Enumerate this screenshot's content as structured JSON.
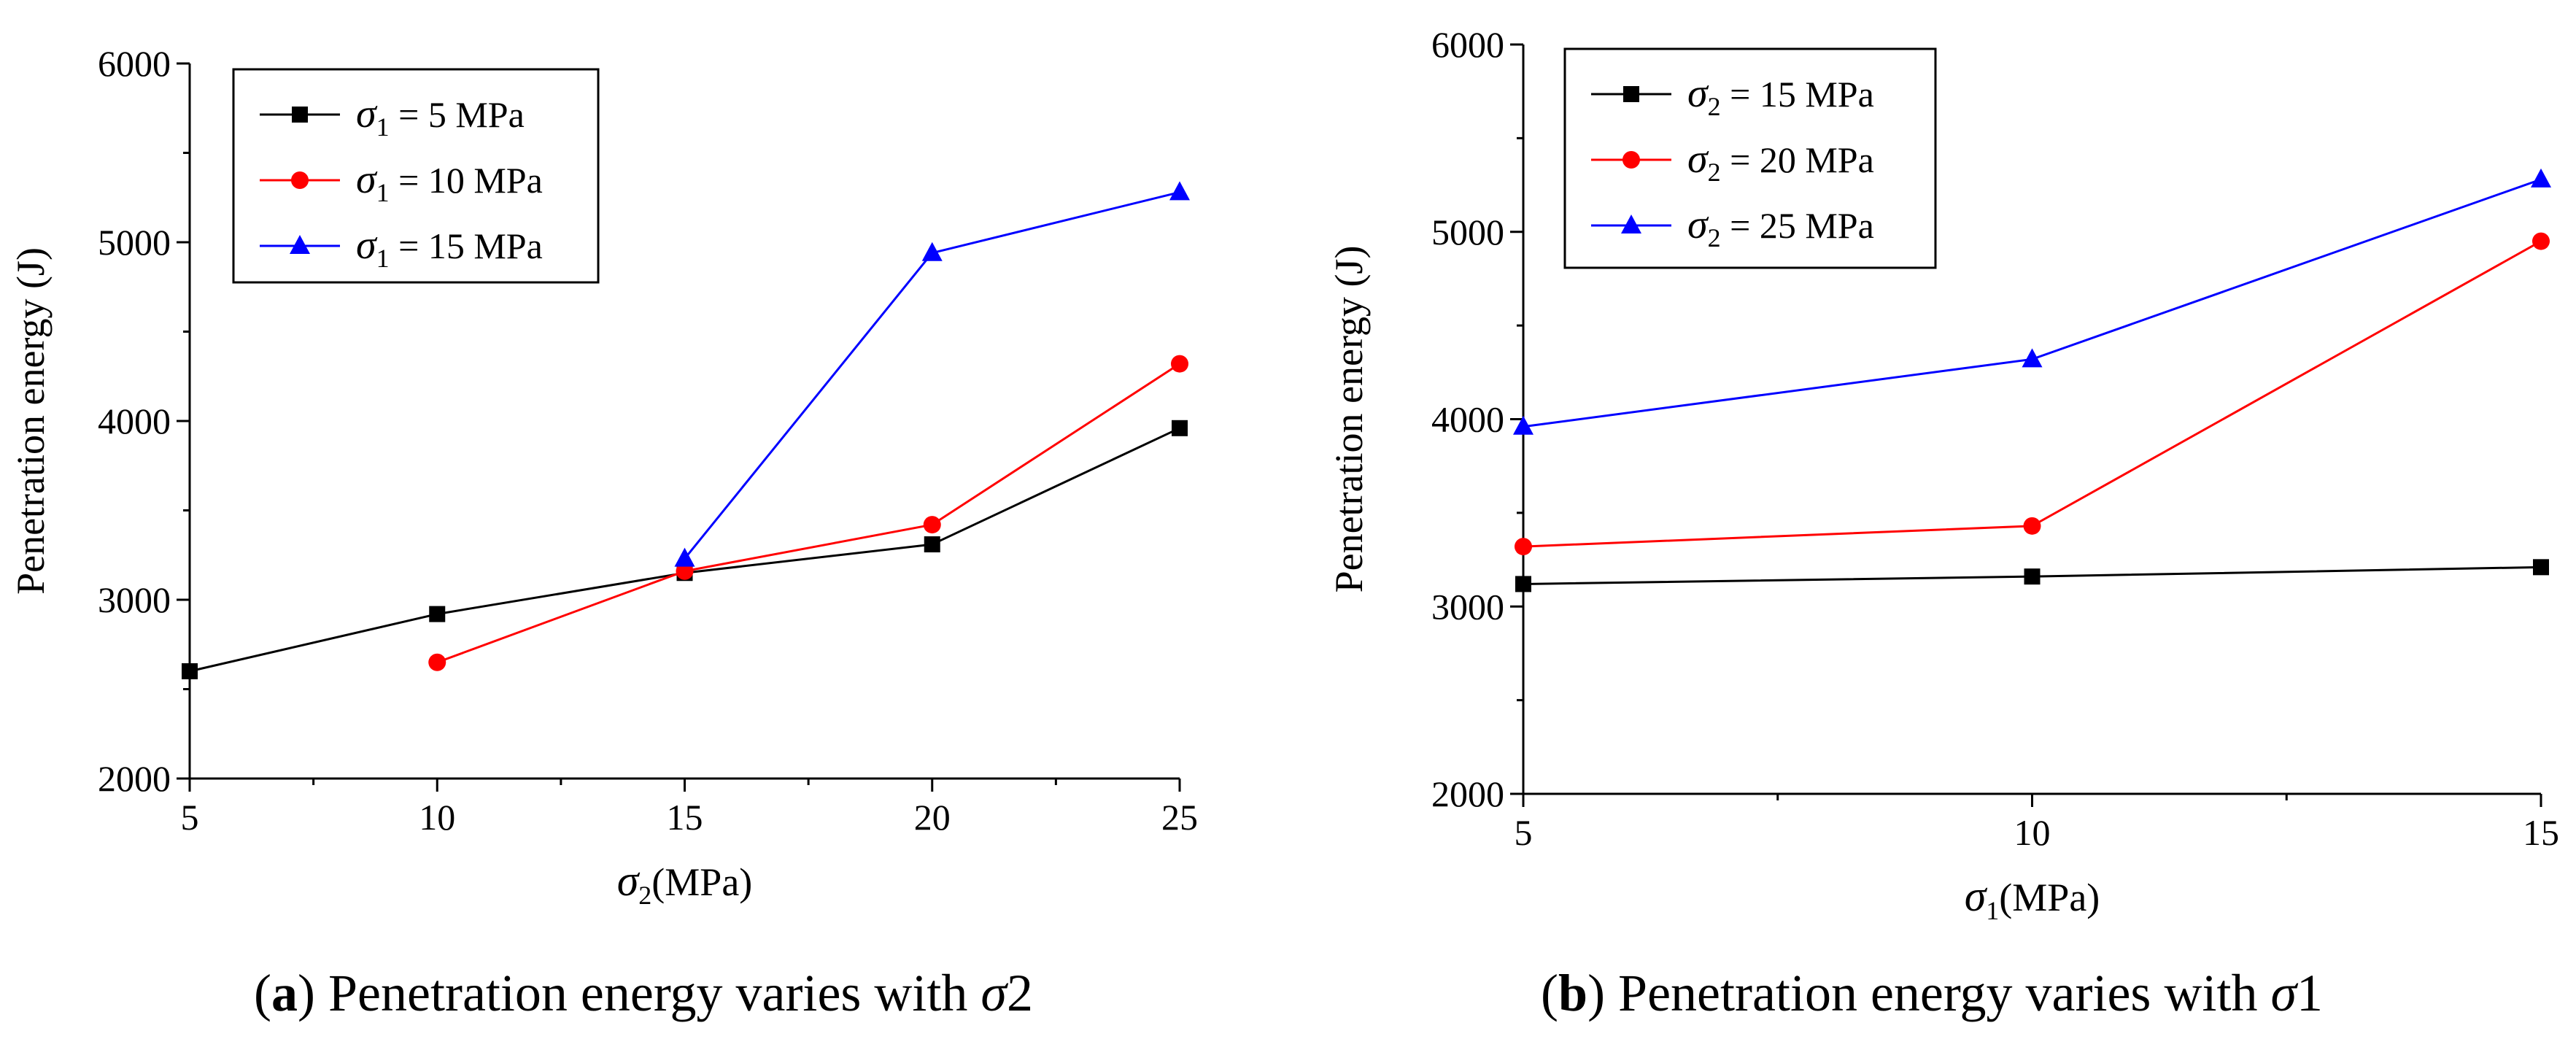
{
  "chart_data": [
    {
      "type": "line",
      "panel": "a",
      "x": [
        5,
        10,
        15,
        20,
        25
      ],
      "xlim": [
        5,
        25
      ],
      "ylim": [
        2000,
        6000
      ],
      "xticks": [
        "5",
        "10",
        "15",
        "20",
        "25"
      ],
      "yticks": [
        "2000",
        "3000",
        "4000",
        "5000",
        "6000"
      ],
      "xlabel": {
        "symbol": "σ",
        "sub": "2",
        "rest": "(MPa)"
      },
      "ylabel": "Penetration energy (J)",
      "legend_position": "top-left",
      "series": [
        {
          "name": {
            "symbol": "σ",
            "sub": "1",
            "rest": " = 5 MPa"
          },
          "x": [
            5,
            10,
            15,
            20,
            25
          ],
          "values": [
            2600,
            2920,
            3150,
            3310,
            3960
          ],
          "color": "#000000",
          "marker": "square"
        },
        {
          "name": {
            "symbol": "σ",
            "sub": "1",
            "rest": " = 10 MPa"
          },
          "x": [
            10,
            15,
            20,
            25
          ],
          "values": [
            2650,
            3160,
            3420,
            4320
          ],
          "color": "#ff0000",
          "marker": "circle"
        },
        {
          "name": {
            "symbol": "σ",
            "sub": "1",
            "rest": " = 15 MPa"
          },
          "x": [
            15,
            20,
            25
          ],
          "values": [
            3230,
            4940,
            5280
          ],
          "color": "#0000ff",
          "marker": "triangle"
        }
      ],
      "caption": {
        "letter": "a",
        "text": " Penetration energy varies with ",
        "symbol": "σ",
        "index": "2"
      }
    },
    {
      "type": "line",
      "panel": "b",
      "x": [
        5,
        10,
        15
      ],
      "xlim": [
        5,
        15
      ],
      "ylim": [
        2000,
        6000
      ],
      "xticks": [
        "5",
        "10",
        "15"
      ],
      "yticks": [
        "2000",
        "3000",
        "4000",
        "5000",
        "6000"
      ],
      "xlabel": {
        "symbol": "σ",
        "sub": "1",
        "rest": "(MPa)"
      },
      "ylabel": "Penetration energy (J)",
      "legend_position": "top-left",
      "series": [
        {
          "name": {
            "symbol": "σ",
            "sub": "2",
            "rest": " = 15 MPa"
          },
          "x": [
            5,
            10,
            15
          ],
          "values": [
            3120,
            3160,
            3210
          ],
          "color": "#000000",
          "marker": "square"
        },
        {
          "name": {
            "symbol": "σ",
            "sub": "2",
            "rest": " = 20 MPa"
          },
          "x": [
            5,
            10,
            15
          ],
          "values": [
            3320,
            3430,
            4950
          ],
          "color": "#ff0000",
          "marker": "circle"
        },
        {
          "name": {
            "symbol": "σ",
            "sub": "2",
            "rest": " = 25 MPa"
          },
          "x": [
            5,
            10,
            15
          ],
          "values": [
            3960,
            4320,
            5280
          ],
          "color": "#0000ff",
          "marker": "triangle"
        }
      ],
      "caption": {
        "letter": "b",
        "text": " Penetration energy varies with ",
        "symbol": "σ",
        "index": "1"
      }
    }
  ]
}
